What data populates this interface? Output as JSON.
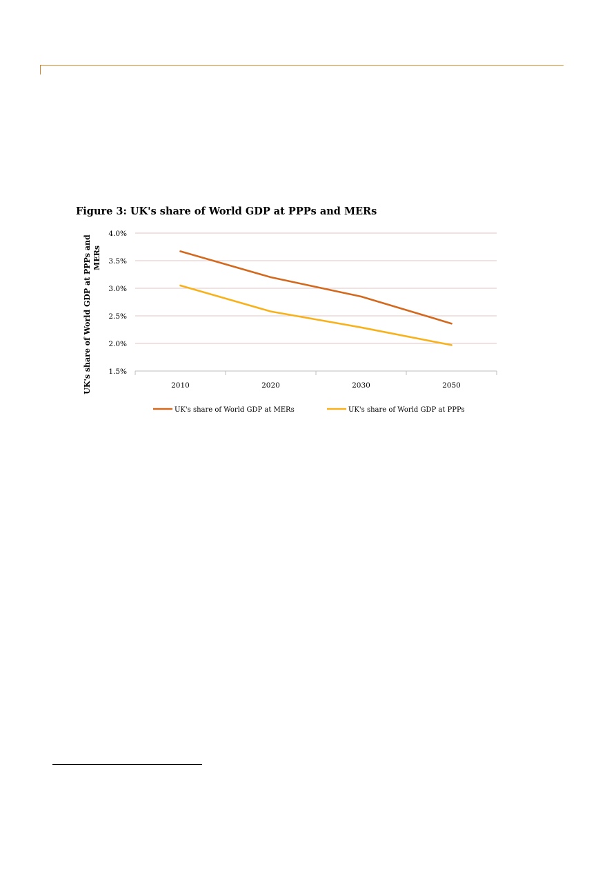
{
  "figure": {
    "title": "Figure 3: UK's share of World GDP at PPPs and MERs"
  },
  "chart_data": {
    "type": "line",
    "title": "Figure 3: UK's share of World GDP at PPPs and MERs",
    "xlabel": "",
    "ylabel": "UK's share of World GDP at PPPs and MERs",
    "ylabel_lines": [
      "UK's share of World GDP at PPPs and",
      "MERs"
    ],
    "categories": [
      "2010",
      "2020",
      "2030",
      "2050"
    ],
    "ylim": [
      1.5,
      4.0
    ],
    "yticks": [
      1.5,
      2.0,
      2.5,
      3.0,
      3.5,
      4.0
    ],
    "ytick_labels": [
      "1.5%",
      "2.0%",
      "2.5%",
      "3.0%",
      "3.5%",
      "4.0%"
    ],
    "grid": true,
    "legend_position": "bottom",
    "series": [
      {
        "name": "UK's share of World GDP at MERs",
        "values": [
          3.67,
          3.2,
          2.85,
          2.36
        ],
        "color": "#d2691e"
      },
      {
        "name": "UK's share of World GDP at PPPs",
        "values": [
          3.05,
          2.58,
          2.29,
          1.97
        ],
        "color": "#f7b21b"
      }
    ]
  }
}
